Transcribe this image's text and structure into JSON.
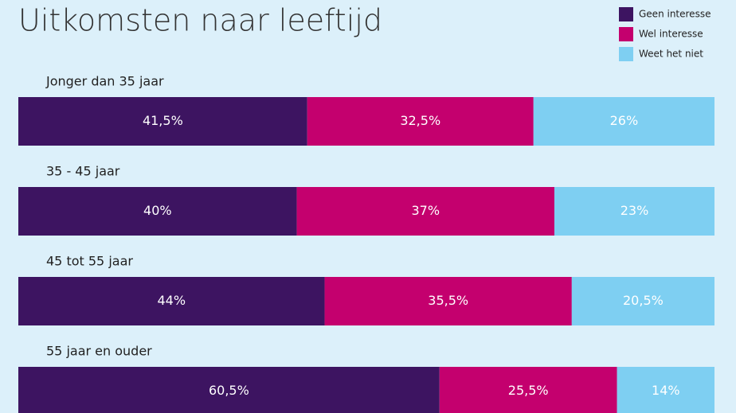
{
  "chart_data": {
    "type": "stacked-bar-100",
    "title": "Uitkomsten naar leeftijd",
    "categories": [
      "Jonger dan 35 jaar",
      "35 - 45 jaar",
      "45 tot 55 jaar",
      "55 jaar en ouder"
    ],
    "series": [
      {
        "name": "Geen interesse",
        "color": "#3d1461",
        "values": [
          41.5,
          40,
          44,
          60.5
        ],
        "value_labels": [
          "41,5%",
          "40%",
          "44%",
          "60,5%"
        ]
      },
      {
        "name": "Wel interesse",
        "color": "#c4006e",
        "values": [
          32.5,
          37,
          35.5,
          25.5
        ],
        "value_labels": [
          "32,5%",
          "37%",
          "35,5%",
          "25,5%"
        ]
      },
      {
        "name": "Weet het niet",
        "color": "#7ecff2",
        "values": [
          26,
          23,
          20.5,
          14
        ],
        "value_labels": [
          "26%",
          "23%",
          "20,5%",
          "14%"
        ]
      }
    ],
    "legend": "top-right"
  }
}
